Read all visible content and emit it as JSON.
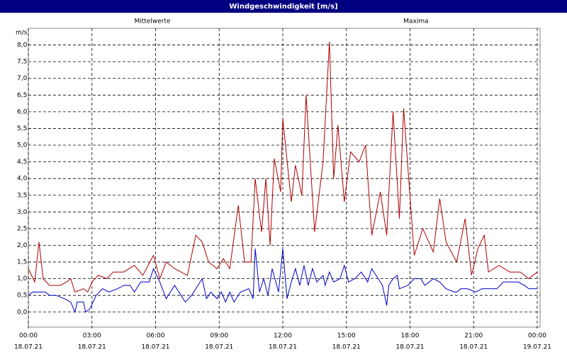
{
  "chart_data": {
    "type": "line",
    "title": "Windgeschwindigkeit [m/s]",
    "y_unit": "m/s",
    "xlim": [
      0,
      24
    ],
    "ylim": [
      -0.45,
      8.5
    ],
    "grid": true,
    "xticks": [
      {
        "value": 0,
        "label": "00:00"
      },
      {
        "value": 3,
        "label": "03:00"
      },
      {
        "value": 6,
        "label": "06:00"
      },
      {
        "value": 9,
        "label": "09:00"
      },
      {
        "value": 12,
        "label": "12:00"
      },
      {
        "value": 15,
        "label": "15:00"
      },
      {
        "value": 18,
        "label": "18:00"
      },
      {
        "value": 21,
        "label": "21:00"
      },
      {
        "value": 24,
        "label": "00:00"
      }
    ],
    "xtick_dates": [
      "18.07.21",
      "18.07.21",
      "18.07.21",
      "18.07.21",
      "18.07.21",
      "18.07.21",
      "18.07.21",
      "18.07.21",
      "19.07.21"
    ],
    "yticks": [
      {
        "value": 0,
        "label": "0,0"
      },
      {
        "value": 0.5,
        "label": "0,5"
      },
      {
        "value": 1,
        "label": "1,0"
      },
      {
        "value": 1.5,
        "label": "1,5"
      },
      {
        "value": 2,
        "label": "2,0"
      },
      {
        "value": 2.5,
        "label": "2,5"
      },
      {
        "value": 3,
        "label": "3,0"
      },
      {
        "value": 3.5,
        "label": "3,5"
      },
      {
        "value": 4,
        "label": "4,0"
      },
      {
        "value": 4.5,
        "label": "4,5"
      },
      {
        "value": 5,
        "label": "5,0"
      },
      {
        "value": 5.5,
        "label": "5,5"
      },
      {
        "value": 6,
        "label": "6,0"
      },
      {
        "value": 6.5,
        "label": "6,5"
      },
      {
        "value": 7,
        "label": "7,0"
      },
      {
        "value": 7.5,
        "label": "7,5"
      },
      {
        "value": 8,
        "label": "8,0"
      }
    ],
    "series": [
      {
        "name": "Mittelwerte",
        "color": "#0000c8",
        "x": [
          0.0,
          0.2,
          0.8,
          1.0,
          1.3,
          1.7,
          2.0,
          2.2,
          2.3,
          2.6,
          2.7,
          2.9,
          3.2,
          3.5,
          3.8,
          4.2,
          4.5,
          4.8,
          5.0,
          5.3,
          5.7,
          5.9,
          6.2,
          6.5,
          6.9,
          7.2,
          7.4,
          7.7,
          8.0,
          8.2,
          8.4,
          8.6,
          8.9,
          9.1,
          9.3,
          9.5,
          9.7,
          10.0,
          10.4,
          10.6,
          10.7,
          10.9,
          11.1,
          11.3,
          11.5,
          11.8,
          12.0,
          12.2,
          12.4,
          12.6,
          12.8,
          13.0,
          13.2,
          13.4,
          13.6,
          13.9,
          14.0,
          14.2,
          14.4,
          14.7,
          14.9,
          15.1,
          15.4,
          15.7,
          16.0,
          16.2,
          16.5,
          16.7,
          16.9,
          17.0,
          17.2,
          17.4,
          17.5,
          17.9,
          18.2,
          18.5,
          18.7,
          19.1,
          19.4,
          19.7,
          20.1,
          20.2,
          20.4,
          20.7,
          21.1,
          21.4,
          21.7,
          22.1,
          22.4,
          22.7,
          23.1,
          23.4,
          23.6,
          24.0
        ],
        "values": [
          0.5,
          0.6,
          0.6,
          0.5,
          0.5,
          0.4,
          0.3,
          0.0,
          0.3,
          0.3,
          0.0,
          0.1,
          0.5,
          0.7,
          0.6,
          0.7,
          0.8,
          0.8,
          0.6,
          0.9,
          0.9,
          1.3,
          0.9,
          0.4,
          0.8,
          0.5,
          0.3,
          0.5,
          0.8,
          1.0,
          0.4,
          0.6,
          0.4,
          0.6,
          0.3,
          0.6,
          0.3,
          0.6,
          0.7,
          0.4,
          1.9,
          0.6,
          1.0,
          0.5,
          1.3,
          0.6,
          1.9,
          0.4,
          0.9,
          1.3,
          0.8,
          1.4,
          0.8,
          1.3,
          0.9,
          1.1,
          0.8,
          1.2,
          0.9,
          1.0,
          1.4,
          0.9,
          1.0,
          1.2,
          0.9,
          1.3,
          1.0,
          0.8,
          0.2,
          0.8,
          1.0,
          1.1,
          0.7,
          0.8,
          1.0,
          1.0,
          0.8,
          1.0,
          0.9,
          0.7,
          0.6,
          0.6,
          0.7,
          0.7,
          0.6,
          0.7,
          0.7,
          0.7,
          0.9,
          0.9,
          0.9,
          0.8,
          0.7,
          0.7
        ]
      },
      {
        "name": "Maxima",
        "color": "#b00000",
        "x": [
          0.0,
          0.3,
          0.5,
          0.7,
          1.0,
          1.5,
          1.8,
          2.0,
          2.2,
          2.6,
          2.8,
          3.0,
          3.3,
          3.7,
          4.0,
          4.5,
          5.0,
          5.4,
          5.9,
          6.2,
          6.5,
          6.9,
          7.5,
          7.9,
          8.2,
          8.5,
          8.9,
          9.2,
          9.5,
          9.9,
          10.2,
          10.5,
          10.7,
          10.9,
          11.0,
          11.2,
          11.4,
          11.6,
          11.9,
          12.0,
          12.4,
          12.6,
          12.9,
          13.1,
          13.5,
          13.9,
          14.2,
          14.4,
          14.6,
          14.9,
          15.2,
          15.6,
          15.9,
          16.2,
          16.6,
          16.9,
          17.2,
          17.5,
          17.7,
          18.2,
          18.6,
          19.1,
          19.4,
          19.7,
          20.2,
          20.6,
          20.9,
          21.2,
          21.5,
          21.7,
          22.2,
          22.7,
          23.2,
          23.6,
          24.0
        ],
        "values": [
          1.3,
          0.9,
          2.1,
          1.0,
          0.8,
          0.8,
          0.9,
          1.0,
          0.6,
          0.7,
          0.6,
          0.9,
          1.1,
          1.0,
          1.2,
          1.2,
          1.4,
          1.1,
          1.7,
          1.0,
          1.5,
          1.3,
          1.1,
          2.3,
          2.1,
          1.5,
          1.3,
          1.6,
          1.3,
          3.2,
          1.5,
          1.5,
          4.0,
          2.9,
          2.4,
          4.0,
          2.0,
          4.6,
          3.6,
          5.8,
          3.3,
          4.4,
          3.5,
          6.5,
          2.4,
          4.5,
          8.1,
          4.0,
          5.6,
          3.3,
          4.8,
          4.5,
          5.0,
          2.3,
          3.6,
          2.3,
          6.0,
          2.8,
          6.1,
          1.7,
          2.5,
          1.8,
          3.4,
          2.1,
          1.5,
          2.8,
          1.1,
          1.9,
          2.3,
          1.2,
          1.4,
          1.2,
          1.2,
          1.0,
          1.2
        ]
      }
    ]
  }
}
